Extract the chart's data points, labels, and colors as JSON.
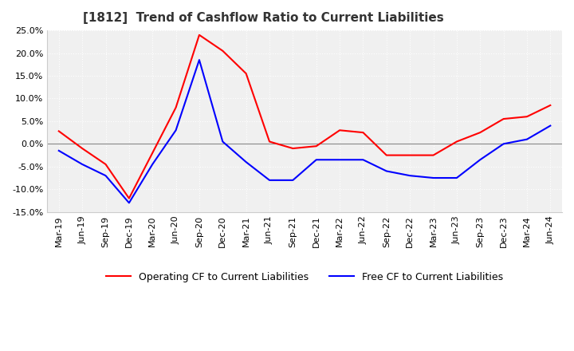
{
  "title": "[1812]  Trend of Cashflow Ratio to Current Liabilities",
  "x_labels": [
    "Mar-19",
    "Jun-19",
    "Sep-19",
    "Dec-19",
    "Mar-20",
    "Jun-20",
    "Sep-20",
    "Dec-20",
    "Mar-21",
    "Jun-21",
    "Sep-21",
    "Dec-21",
    "Mar-22",
    "Jun-22",
    "Sep-22",
    "Dec-22",
    "Mar-23",
    "Jun-23",
    "Sep-23",
    "Dec-23",
    "Mar-24",
    "Jun-24"
  ],
  "operating_cf": [
    2.8,
    -1.0,
    -4.5,
    -12.0,
    -2.0,
    8.0,
    24.0,
    20.5,
    15.5,
    0.5,
    -1.0,
    -0.5,
    3.0,
    2.5,
    -2.5,
    -2.5,
    -2.5,
    0.5,
    2.5,
    5.5,
    6.0,
    8.5
  ],
  "free_cf": [
    -1.5,
    -4.5,
    -7.0,
    -13.0,
    -4.5,
    3.0,
    18.5,
    0.5,
    -4.0,
    -8.0,
    -8.0,
    -3.5,
    -3.5,
    -3.5,
    -6.0,
    -7.0,
    -7.5,
    -7.5,
    -3.5,
    0.0,
    1.0,
    4.0
  ],
  "ylim": [
    -15.0,
    25.0
  ],
  "yticks": [
    -15.0,
    -10.0,
    -5.0,
    0.0,
    5.0,
    10.0,
    15.0,
    20.0,
    25.0
  ],
  "operating_color": "#FF0000",
  "free_color": "#0000FF",
  "legend_operating": "Operating CF to Current Liabilities",
  "legend_free": "Free CF to Current Liabilities",
  "bg_color": "#FFFFFF",
  "plot_bg_color": "#F0F0F0",
  "grid_color": "#FFFFFF",
  "title_fontsize": 11,
  "axis_fontsize": 8,
  "legend_fontsize": 9
}
